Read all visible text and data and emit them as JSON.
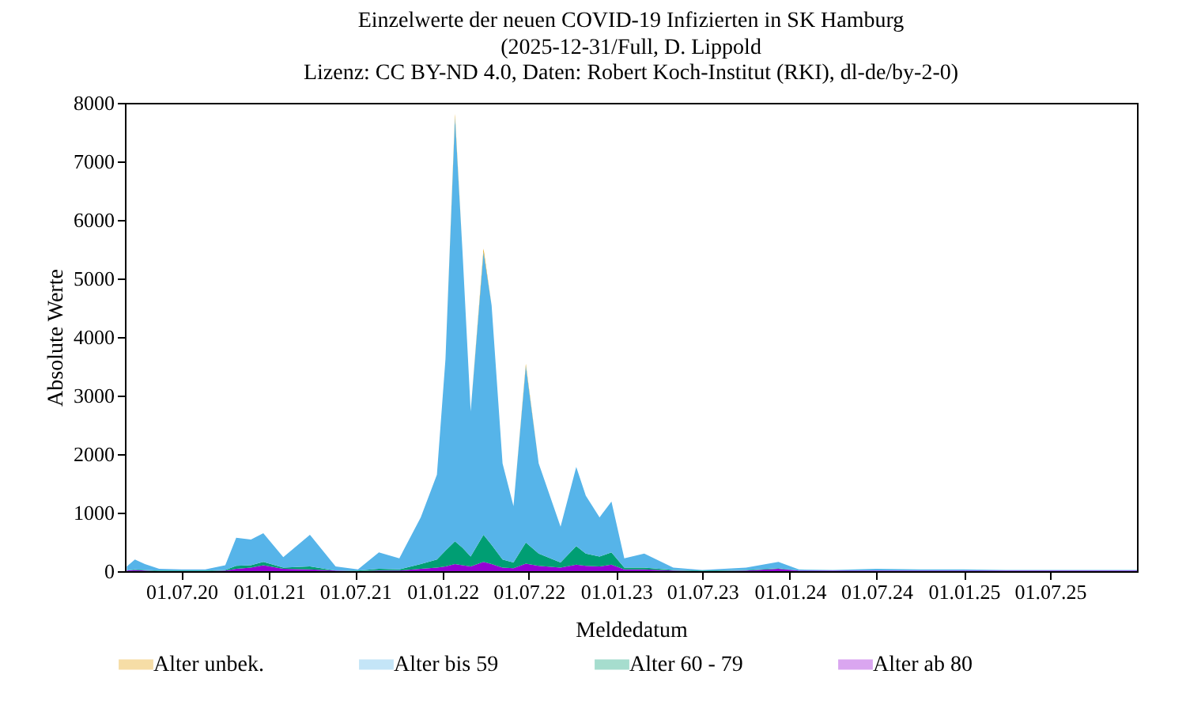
{
  "chart_data": {
    "type": "area",
    "stacked": true,
    "title": "Einzelwerte der neuen COVID-19 Infizierten in SK Hamburg",
    "subtitle": "(2025-12-31/Full, D. Lippold\nLizenz: CC BY-ND 4.0, Daten: Robert Koch-Institut (RKI), dl-de/by-2-0)",
    "xlabel": "Meldedatum",
    "ylabel": "Absolute Werte",
    "x": [
      "2020-03-08",
      "2020-03-25",
      "2020-04-15",
      "2020-05-15",
      "2020-07-01",
      "2020-08-20",
      "2020-10-01",
      "2020-10-24",
      "2020-11-24",
      "2020-12-20",
      "2021-01-31",
      "2021-03-28",
      "2021-05-21",
      "2021-07-07",
      "2021-08-20",
      "2021-10-02",
      "2021-11-16",
      "2021-12-20",
      "2022-01-07",
      "2022-01-27",
      "2022-02-12",
      "2022-03-01",
      "2022-03-28",
      "2022-04-14",
      "2022-05-07",
      "2022-05-30",
      "2022-06-25",
      "2022-07-22",
      "2022-09-06",
      "2022-10-09",
      "2022-10-29",
      "2022-11-27",
      "2022-12-22",
      "2023-01-18",
      "2023-03-01",
      "2023-05-01",
      "2023-07-01",
      "2023-10-01",
      "2023-12-08",
      "2024-01-20",
      "2024-04-01",
      "2024-07-01",
      "2024-10-01",
      "2025-01-01",
      "2025-04-01",
      "2025-07-01",
      "2025-10-01",
      "2025-12-31"
    ],
    "series": [
      {
        "name": "Alter ab 80",
        "color": "#9400d3",
        "values": [
          10,
          20,
          10,
          0,
          0,
          0,
          10,
          40,
          60,
          100,
          40,
          30,
          10,
          0,
          10,
          10,
          40,
          60,
          80,
          120,
          100,
          80,
          160,
          120,
          60,
          50,
          130,
          90,
          60,
          110,
          90,
          80,
          110,
          30,
          30,
          10,
          0,
          10,
          40,
          10,
          10,
          10,
          10,
          10,
          10,
          10,
          10,
          10
        ]
      },
      {
        "name": "Alter 60 - 79",
        "color": "#009e73",
        "values": [
          0,
          10,
          10,
          10,
          10,
          10,
          10,
          50,
          40,
          60,
          20,
          50,
          0,
          10,
          30,
          20,
          80,
          140,
          270,
          390,
          300,
          170,
          460,
          330,
          140,
          100,
          360,
          210,
          90,
          320,
          210,
          170,
          210,
          30,
          30,
          10,
          10,
          10,
          10,
          0,
          0,
          0,
          0,
          0,
          0,
          0,
          0,
          0
        ]
      },
      {
        "name": "Alter bis 59",
        "color": "#56b4e9",
        "values": [
          70,
          170,
          100,
          30,
          20,
          20,
          80,
          480,
          440,
          490,
          180,
          540,
          70,
          20,
          280,
          190,
          800,
          1450,
          3270,
          7250,
          5030,
          2480,
          4840,
          4090,
          1640,
          960,
          3020,
          1540,
          610,
          1350,
          990,
          670,
          870,
          160,
          240,
          40,
          10,
          40,
          110,
          20,
          10,
          30,
          20,
          20,
          10,
          10,
          10,
          10
        ]
      },
      {
        "name": "Alter unbek.",
        "color": "#e69f00",
        "values": [
          0,
          0,
          0,
          0,
          0,
          0,
          0,
          0,
          0,
          0,
          0,
          0,
          0,
          0,
          0,
          0,
          0,
          0,
          0,
          50,
          0,
          0,
          50,
          0,
          0,
          0,
          30,
          0,
          0,
          0,
          0,
          0,
          0,
          0,
          0,
          0,
          0,
          0,
          0,
          0,
          0,
          0,
          0,
          0,
          0,
          0,
          0,
          0
        ]
      }
    ],
    "xlim": [
      "2020-03-04",
      "2025-12-31"
    ],
    "xticks": [
      {
        "value": "2020-07-01",
        "label": "01.07.20"
      },
      {
        "value": "2021-01-01",
        "label": "01.01.21"
      },
      {
        "value": "2021-07-01",
        "label": "01.07.21"
      },
      {
        "value": "2022-01-01",
        "label": "01.01.22"
      },
      {
        "value": "2022-07-01",
        "label": "01.07.22"
      },
      {
        "value": "2023-01-01",
        "label": "01.01.23"
      },
      {
        "value": "2023-07-01",
        "label": "01.07.23"
      },
      {
        "value": "2024-01-01",
        "label": "01.01.24"
      },
      {
        "value": "2024-07-01",
        "label": "01.07.24"
      },
      {
        "value": "2025-01-01",
        "label": "01.01.25"
      },
      {
        "value": "2025-07-01",
        "label": "01.07.25"
      }
    ],
    "ylim": [
      0,
      8000
    ],
    "yticks": [
      0,
      1000,
      2000,
      3000,
      4000,
      5000,
      6000,
      7000,
      8000
    ],
    "grid": false,
    "legend": "bottom"
  }
}
